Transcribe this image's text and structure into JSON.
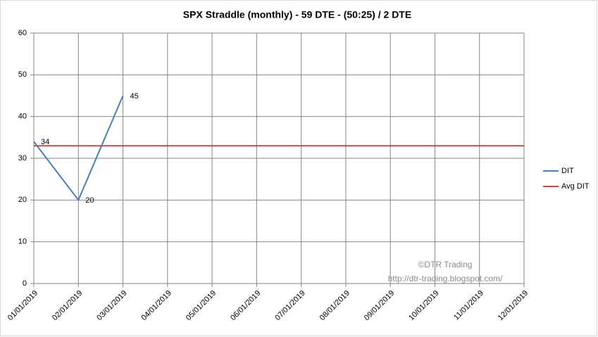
{
  "chart_data": {
    "type": "line",
    "title": "SPX Straddle (monthly) - 59 DTE -   (50:25) / 2 DTE",
    "categories": [
      "01/01/2019",
      "02/01/2019",
      "03/01/2019",
      "04/01/2019",
      "05/01/2019",
      "06/01/2019",
      "07/01/2019",
      "08/01/2019",
      "09/01/2019",
      "10/01/2019",
      "11/01/2019",
      "12/01/2019"
    ],
    "series": [
      {
        "name": "DIT",
        "color": "#4a7ebb",
        "values": [
          34,
          20,
          45,
          null,
          null,
          null,
          null,
          null,
          null,
          null,
          null,
          null
        ]
      },
      {
        "name": "Avg DIT",
        "color": "#be4b48",
        "values": [
          33,
          33,
          33,
          33,
          33,
          33,
          33,
          33,
          33,
          33,
          33,
          33
        ]
      }
    ],
    "ylim": [
      0,
      60
    ],
    "yticks": [
      0,
      10,
      20,
      30,
      40,
      50,
      60
    ],
    "grid": true,
    "legend": "right",
    "annotations": [
      "©DTR Trading",
      "http://dtr-trading.blogspot.com/"
    ]
  }
}
